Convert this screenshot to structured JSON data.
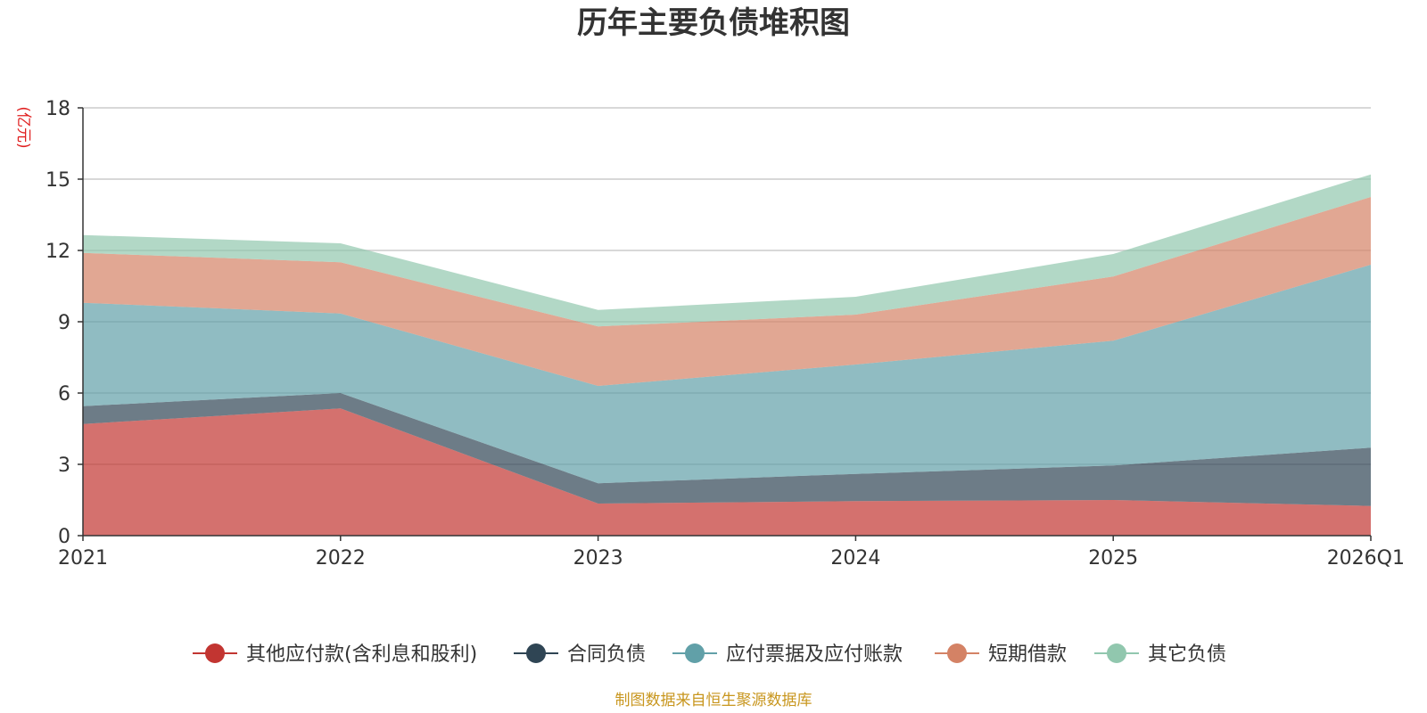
{
  "chart_data": {
    "type": "area",
    "stacked": true,
    "title": "历年主要负债堆积图",
    "ylabel": "(亿元)",
    "xlabel": "",
    "categories": [
      "2021",
      "2022",
      "2023",
      "2024",
      "2025",
      "2026Q1"
    ],
    "ylim": [
      0,
      18
    ],
    "yticks": [
      0,
      3,
      6,
      9,
      12,
      15,
      18
    ],
    "grid": true,
    "legend_position": "bottom",
    "series": [
      {
        "name": "其他应付款(含利息和股利)",
        "color": "#c23531",
        "values": [
          4.7,
          5.35,
          1.35,
          1.45,
          1.5,
          1.25
        ]
      },
      {
        "name": "合同负债",
        "color": "#2f4554",
        "values": [
          0.75,
          0.65,
          0.85,
          1.15,
          1.45,
          2.45
        ]
      },
      {
        "name": "应付票据及应付账款",
        "color": "#61a0a8",
        "values": [
          4.35,
          3.35,
          4.1,
          4.6,
          5.25,
          7.7
        ]
      },
      {
        "name": "短期借款",
        "color": "#d48265",
        "values": [
          2.1,
          2.15,
          2.5,
          2.1,
          2.7,
          2.85
        ]
      },
      {
        "name": "其它负债",
        "color": "#91c7ae",
        "values": [
          0.75,
          0.8,
          0.7,
          0.75,
          0.95,
          0.95
        ]
      }
    ],
    "source": "制图数据来自恒生聚源数据库"
  }
}
